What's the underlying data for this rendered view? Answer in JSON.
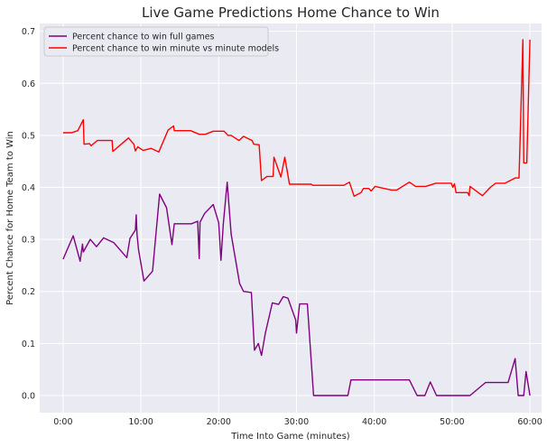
{
  "chart_data": {
    "type": "line",
    "title": "Live Game Predictions Home Chance to Win",
    "xlabel": "Time Into Game (minutes)",
    "ylabel": "Percent Chance for Home Team to Win",
    "xlim": [
      -3,
      61.5
    ],
    "ylim": [
      -0.033,
      0.715
    ],
    "x_ticks": [
      0,
      10,
      20,
      30,
      40,
      50,
      60
    ],
    "x_tick_labels": [
      "0:00",
      "10:00",
      "20:00",
      "30:00",
      "40:00",
      "50:00",
      "60:00"
    ],
    "y_ticks": [
      0.0,
      0.1,
      0.2,
      0.3,
      0.4,
      0.5,
      0.6,
      0.7
    ],
    "y_tick_labels": [
      "0.0",
      "0.1",
      "0.2",
      "0.3",
      "0.4",
      "0.5",
      "0.6",
      "0.7"
    ],
    "grid": true,
    "legend_position": "top-left",
    "background": "#eaeaf2",
    "series": [
      {
        "name": "Percent chance to win full games",
        "color": "#800080",
        "points": [
          [
            0.0,
            0.262
          ],
          [
            1.3,
            0.307
          ],
          [
            2.2,
            0.258
          ],
          [
            2.5,
            0.291
          ],
          [
            2.6,
            0.276
          ],
          [
            3.5,
            0.3
          ],
          [
            4.3,
            0.286
          ],
          [
            5.2,
            0.303
          ],
          [
            6.5,
            0.294
          ],
          [
            8.2,
            0.265
          ],
          [
            8.6,
            0.302
          ],
          [
            9.3,
            0.318
          ],
          [
            9.4,
            0.347
          ],
          [
            9.5,
            0.31
          ],
          [
            9.7,
            0.28
          ],
          [
            10.4,
            0.22
          ],
          [
            11.5,
            0.239
          ],
          [
            12.4,
            0.387
          ],
          [
            13.3,
            0.361
          ],
          [
            14.0,
            0.29
          ],
          [
            14.3,
            0.33
          ],
          [
            16.5,
            0.33
          ],
          [
            17.3,
            0.335
          ],
          [
            17.5,
            0.263
          ],
          [
            17.6,
            0.333
          ],
          [
            18.2,
            0.35
          ],
          [
            19.3,
            0.367
          ],
          [
            20.0,
            0.332
          ],
          [
            20.3,
            0.26
          ],
          [
            20.6,
            0.33
          ],
          [
            21.1,
            0.41
          ],
          [
            21.6,
            0.31
          ],
          [
            22.7,
            0.215
          ],
          [
            23.2,
            0.2
          ],
          [
            24.2,
            0.198
          ],
          [
            24.6,
            0.087
          ],
          [
            25.1,
            0.1
          ],
          [
            25.5,
            0.077
          ],
          [
            26.0,
            0.12
          ],
          [
            26.9,
            0.178
          ],
          [
            27.7,
            0.175
          ],
          [
            28.3,
            0.19
          ],
          [
            28.9,
            0.187
          ],
          [
            29.9,
            0.145
          ],
          [
            30.0,
            0.12
          ],
          [
            30.4,
            0.176
          ],
          [
            31.4,
            0.176
          ],
          [
            32.2,
            0.0
          ],
          [
            36.6,
            0.0
          ],
          [
            37.0,
            0.03
          ],
          [
            44.5,
            0.03
          ],
          [
            45.5,
            0.0
          ],
          [
            46.5,
            0.0
          ],
          [
            47.2,
            0.026
          ],
          [
            48.0,
            0.0
          ],
          [
            52.3,
            0.0
          ],
          [
            54.3,
            0.025
          ],
          [
            57.2,
            0.025
          ],
          [
            58.1,
            0.071
          ],
          [
            58.5,
            0.0
          ],
          [
            59.2,
            0.0
          ],
          [
            59.5,
            0.046
          ],
          [
            60.0,
            0.0
          ]
        ]
      },
      {
        "name": "Percent chance to win minute vs minute models",
        "color": "#ff0000",
        "points": [
          [
            0.0,
            0.505
          ],
          [
            1.1,
            0.505
          ],
          [
            1.9,
            0.509
          ],
          [
            2.6,
            0.53
          ],
          [
            2.7,
            0.483
          ],
          [
            3.4,
            0.484
          ],
          [
            3.6,
            0.48
          ],
          [
            4.4,
            0.49
          ],
          [
            6.3,
            0.49
          ],
          [
            6.4,
            0.469
          ],
          [
            8.4,
            0.495
          ],
          [
            9.1,
            0.483
          ],
          [
            9.3,
            0.47
          ],
          [
            9.6,
            0.478
          ],
          [
            10.3,
            0.471
          ],
          [
            11.3,
            0.475
          ],
          [
            12.3,
            0.468
          ],
          [
            13.5,
            0.51
          ],
          [
            14.2,
            0.518
          ],
          [
            14.3,
            0.509
          ],
          [
            16.4,
            0.509
          ],
          [
            17.5,
            0.502
          ],
          [
            18.3,
            0.502
          ],
          [
            19.3,
            0.508
          ],
          [
            20.7,
            0.508
          ],
          [
            21.2,
            0.5
          ],
          [
            21.6,
            0.5
          ],
          [
            22.6,
            0.49
          ],
          [
            23.2,
            0.498
          ],
          [
            24.3,
            0.49
          ],
          [
            24.5,
            0.483
          ],
          [
            25.2,
            0.482
          ],
          [
            25.5,
            0.413
          ],
          [
            26.2,
            0.421
          ],
          [
            27.0,
            0.421
          ],
          [
            27.1,
            0.458
          ],
          [
            28.0,
            0.42
          ],
          [
            28.5,
            0.458
          ],
          [
            29.1,
            0.406
          ],
          [
            31.9,
            0.406
          ],
          [
            32.1,
            0.404
          ],
          [
            36.1,
            0.404
          ],
          [
            36.8,
            0.41
          ],
          [
            37.4,
            0.383
          ],
          [
            38.3,
            0.39
          ],
          [
            38.6,
            0.398
          ],
          [
            39.3,
            0.398
          ],
          [
            39.6,
            0.393
          ],
          [
            40.1,
            0.402
          ],
          [
            42.2,
            0.395
          ],
          [
            42.9,
            0.395
          ],
          [
            44.5,
            0.41
          ],
          [
            45.3,
            0.402
          ],
          [
            46.6,
            0.402
          ],
          [
            47.9,
            0.408
          ],
          [
            49.9,
            0.408
          ],
          [
            50.1,
            0.4
          ],
          [
            50.3,
            0.407
          ],
          [
            50.5,
            0.39
          ],
          [
            52.0,
            0.39
          ],
          [
            52.2,
            0.384
          ],
          [
            52.3,
            0.402
          ],
          [
            53.9,
            0.384
          ],
          [
            54.9,
            0.4
          ],
          [
            55.6,
            0.408
          ],
          [
            56.8,
            0.408
          ],
          [
            58.1,
            0.418
          ],
          [
            58.6,
            0.418
          ],
          [
            59.1,
            0.684
          ],
          [
            59.2,
            0.447
          ],
          [
            59.6,
            0.447
          ],
          [
            60.0,
            0.684
          ]
        ]
      }
    ]
  }
}
